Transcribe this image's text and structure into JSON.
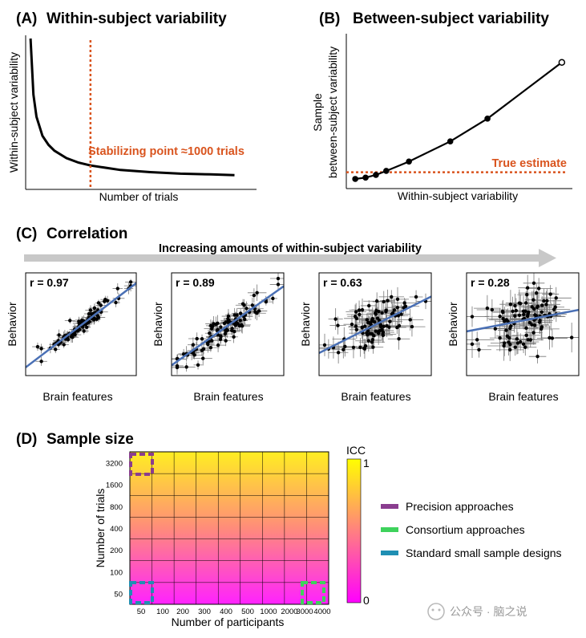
{
  "panelA": {
    "label": "(A)",
    "title": "Within-subject variability",
    "xlabel": "Number of trials",
    "ylabel": "Within-subject variability",
    "annotation": "Stabilizing point ≈1000 trials",
    "colors": {
      "curve": "#000000",
      "marker": "#d9541e"
    },
    "chart_data": {
      "type": "line",
      "x": [
        1,
        50,
        100,
        200,
        300,
        400,
        600,
        800,
        1000,
        1500,
        2000,
        2500,
        3000,
        3400
      ],
      "y": [
        1.0,
        0.62,
        0.47,
        0.34,
        0.28,
        0.24,
        0.19,
        0.16,
        0.14,
        0.11,
        0.095,
        0.085,
        0.08,
        0.075
      ],
      "vline_x": 1000,
      "xlim": [
        0,
        3500
      ],
      "ylim": [
        0,
        1.0
      ]
    }
  },
  "panelB": {
    "label": "(B)",
    "title": "Between-subject variability",
    "xlabel": "Within-subject variability",
    "ylabel_line1": "Sample",
    "ylabel_line2": "between-subject variability",
    "annotation": "True estimate",
    "colors": {
      "curve": "#000000",
      "marker": "#d9541e"
    },
    "chart_data": {
      "type": "line",
      "x": [
        0.0,
        0.05,
        0.1,
        0.15,
        0.26,
        0.46,
        0.64,
        1.0
      ],
      "y": [
        0.0,
        0.01,
        0.03,
        0.06,
        0.13,
        0.28,
        0.45,
        0.87
      ],
      "hline_y": 0.05,
      "xlim": [
        -0.02,
        1.02
      ],
      "ylim": [
        -0.03,
        1.0
      ]
    }
  },
  "panelC": {
    "label": "(C)",
    "title": "Correlation",
    "arrow_label": "Increasing amounts of within-subject variability",
    "xlabel": "Brain features",
    "ylabel": "Behavior",
    "colors": {
      "fit": "#4a70b5",
      "points": "#000000",
      "error": "#777777",
      "arrow": "#c8c8c8"
    },
    "chart_data": [
      {
        "type": "scatter",
        "r_label": "r = 0.97",
        "r": 0.97,
        "fit_start": [
          0.0,
          0.08
        ],
        "fit_end": [
          1.0,
          0.9
        ],
        "noise": 0.07
      },
      {
        "type": "scatter",
        "r_label": "r = 0.89",
        "r": 0.89,
        "fit_start": [
          0.0,
          0.1
        ],
        "fit_end": [
          1.0,
          0.87
        ],
        "noise": 0.12
      },
      {
        "type": "scatter",
        "r_label": "r = 0.63",
        "r": 0.63,
        "fit_start": [
          0.0,
          0.22
        ],
        "fit_end": [
          1.0,
          0.77
        ],
        "noise": 0.2
      },
      {
        "type": "scatter",
        "r_label": "r = 0.28",
        "r": 0.28,
        "fit_start": [
          0.0,
          0.43
        ],
        "fit_end": [
          1.0,
          0.64
        ],
        "noise": 0.28
      }
    ]
  },
  "panelD": {
    "label": "(D)",
    "title": "Sample size",
    "xlabel": "Number of participants",
    "ylabel": "Number of trials",
    "colorbar_title": "ICC",
    "colorbar_max": "1",
    "colorbar_min": "0",
    "colors": {
      "low": "#ff22ff",
      "mid": "#ff7f80",
      "high": "#ffff22"
    },
    "chart_data": {
      "type": "heatmap",
      "x_ticks": [
        "50",
        "100",
        "200",
        "300",
        "400",
        "500",
        "1000",
        "2000",
        "3000",
        "4000"
      ],
      "y_ticks": [
        "50",
        "100",
        "200",
        "400",
        "800",
        "1600",
        "3200"
      ],
      "value_range": [
        0,
        1
      ],
      "icc_note": "ICC increases with number of trials (bottom to top)"
    },
    "legend": [
      {
        "label": "Precision approaches",
        "color": "#8a3d8f"
      },
      {
        "label": "Consortium approaches",
        "color": "#3ed25c"
      },
      {
        "label": "Standard small sample designs",
        "color": "#1f8fb3"
      }
    ]
  },
  "watermark": {
    "text": "公众号 · 脑之说"
  }
}
